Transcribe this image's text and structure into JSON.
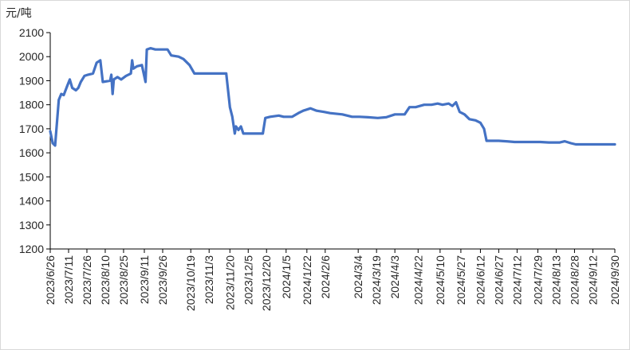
{
  "chart_data": {
    "type": "line",
    "unit_label": "元/吨",
    "title": "",
    "xlabel": "",
    "ylabel": "",
    "ylim": [
      1200,
      2100
    ],
    "y_ticks": [
      1200,
      1300,
      1400,
      1500,
      1600,
      1700,
      1800,
      1900,
      2000,
      2100
    ],
    "x_ticks": [
      "2023/6/26",
      "2023/7/11",
      "2023/7/26",
      "2023/8/10",
      "2023/8/25",
      "2023/9/11",
      "2023/9/26",
      "2023/10/19",
      "2023/11/3",
      "2023/11/20",
      "2023/12/5",
      "2023/12/20",
      "2024/1/5",
      "2024/1/22",
      "2024/2/6",
      "2024/3/4",
      "2024/3/19",
      "2024/4/3",
      "2024/4/22",
      "2024/5/10",
      "2024/5/27",
      "2024/6/12",
      "2024/6/27",
      "2024/7/12",
      "2024/7/29",
      "2024/8/13",
      "2024/8/28",
      "2024/9/12",
      "2024/9/30"
    ],
    "grid": false,
    "legend": "none",
    "line_color": "#4472C4",
    "series": [
      {
        "points": [
          [
            "2023/6/26",
            1690
          ],
          [
            "2023/6/28",
            1640
          ],
          [
            "2023/6/30",
            1630
          ],
          [
            "2023/7/3",
            1820
          ],
          [
            "2023/7/5",
            1845
          ],
          [
            "2023/7/7",
            1840
          ],
          [
            "2023/7/10",
            1880
          ],
          [
            "2023/7/12",
            1905
          ],
          [
            "2023/7/14",
            1870
          ],
          [
            "2023/7/17",
            1860
          ],
          [
            "2023/7/19",
            1870
          ],
          [
            "2023/7/21",
            1895
          ],
          [
            "2023/7/24",
            1920
          ],
          [
            "2023/7/27",
            1925
          ],
          [
            "2023/7/31",
            1930
          ],
          [
            "2023/8/3",
            1975
          ],
          [
            "2023/8/6",
            1985
          ],
          [
            "2023/8/8",
            1895
          ],
          [
            "2023/8/14",
            1900
          ],
          [
            "2023/8/15",
            1925
          ],
          [
            "2023/8/16",
            1845
          ],
          [
            "2023/8/17",
            1905
          ],
          [
            "2023/8/20",
            1915
          ],
          [
            "2023/8/23",
            1905
          ],
          [
            "2023/8/27",
            1920
          ],
          [
            "2023/8/31",
            1930
          ],
          [
            "2023/9/1",
            1985
          ],
          [
            "2023/9/2",
            1950
          ],
          [
            "2023/9/5",
            1960
          ],
          [
            "2023/9/9",
            1965
          ],
          [
            "2023/9/12",
            1895
          ],
          [
            "2023/9/13",
            2030
          ],
          [
            "2023/9/16",
            2035
          ],
          [
            "2023/9/20",
            2030
          ],
          [
            "2023/9/26",
            2030
          ],
          [
            "2023/9/30",
            2030
          ],
          [
            "2023/10/3",
            2005
          ],
          [
            "2023/10/9",
            2000
          ],
          [
            "2023/10/13",
            1990
          ],
          [
            "2023/10/18",
            1965
          ],
          [
            "2023/10/22",
            1930
          ],
          [
            "2023/10/30",
            1930
          ],
          [
            "2023/11/9",
            1930
          ],
          [
            "2023/11/17",
            1930
          ],
          [
            "2023/11/20",
            1790
          ],
          [
            "2023/11/22",
            1750
          ],
          [
            "2023/11/24",
            1680
          ],
          [
            "2023/11/25",
            1710
          ],
          [
            "2023/11/27",
            1695
          ],
          [
            "2023/11/29",
            1710
          ],
          [
            "2023/12/1",
            1680
          ],
          [
            "2023/12/10",
            1680
          ],
          [
            "2023/12/17",
            1680
          ],
          [
            "2023/12/19",
            1745
          ],
          [
            "2023/12/23",
            1750
          ],
          [
            "2023/12/30",
            1755
          ],
          [
            "2024/1/3",
            1750
          ],
          [
            "2024/1/10",
            1750
          ],
          [
            "2024/1/15",
            1765
          ],
          [
            "2024/1/19",
            1775
          ],
          [
            "2024/1/25",
            1785
          ],
          [
            "2024/1/30",
            1775
          ],
          [
            "2024/2/5",
            1770
          ],
          [
            "2024/2/10",
            1765
          ],
          [
            "2024/2/20",
            1760
          ],
          [
            "2024/2/28",
            1750
          ],
          [
            "2024/3/5",
            1750
          ],
          [
            "2024/3/12",
            1748
          ],
          [
            "2024/3/20",
            1745
          ],
          [
            "2024/3/27",
            1748
          ],
          [
            "2024/4/3",
            1760
          ],
          [
            "2024/4/8",
            1760
          ],
          [
            "2024/4/11",
            1760
          ],
          [
            "2024/4/15",
            1790
          ],
          [
            "2024/4/20",
            1790
          ],
          [
            "2024/4/27",
            1800
          ],
          [
            "2024/5/3",
            1800
          ],
          [
            "2024/5/8",
            1805
          ],
          [
            "2024/5/12",
            1800
          ],
          [
            "2024/5/17",
            1805
          ],
          [
            "2024/5/20",
            1795
          ],
          [
            "2024/5/23",
            1810
          ],
          [
            "2024/5/26",
            1770
          ],
          [
            "2024/5/30",
            1760
          ],
          [
            "2024/6/3",
            1740
          ],
          [
            "2024/6/8",
            1735
          ],
          [
            "2024/6/12",
            1725
          ],
          [
            "2024/6/15",
            1700
          ],
          [
            "2024/6/17",
            1650
          ],
          [
            "2024/6/22",
            1650
          ],
          [
            "2024/6/27",
            1650
          ],
          [
            "2024/7/3",
            1648
          ],
          [
            "2024/7/10",
            1645
          ],
          [
            "2024/7/18",
            1645
          ],
          [
            "2024/7/25",
            1645
          ],
          [
            "2024/7/31",
            1645
          ],
          [
            "2024/8/7",
            1643
          ],
          [
            "2024/8/12",
            1643
          ],
          [
            "2024/8/16",
            1643
          ],
          [
            "2024/8/20",
            1648
          ],
          [
            "2024/8/25",
            1640
          ],
          [
            "2024/8/29",
            1635
          ],
          [
            "2024/9/5",
            1635
          ],
          [
            "2024/9/12",
            1635
          ],
          [
            "2024/9/17",
            1635
          ],
          [
            "2024/9/23",
            1635
          ],
          [
            "2024/9/30",
            1635
          ]
        ]
      }
    ]
  }
}
